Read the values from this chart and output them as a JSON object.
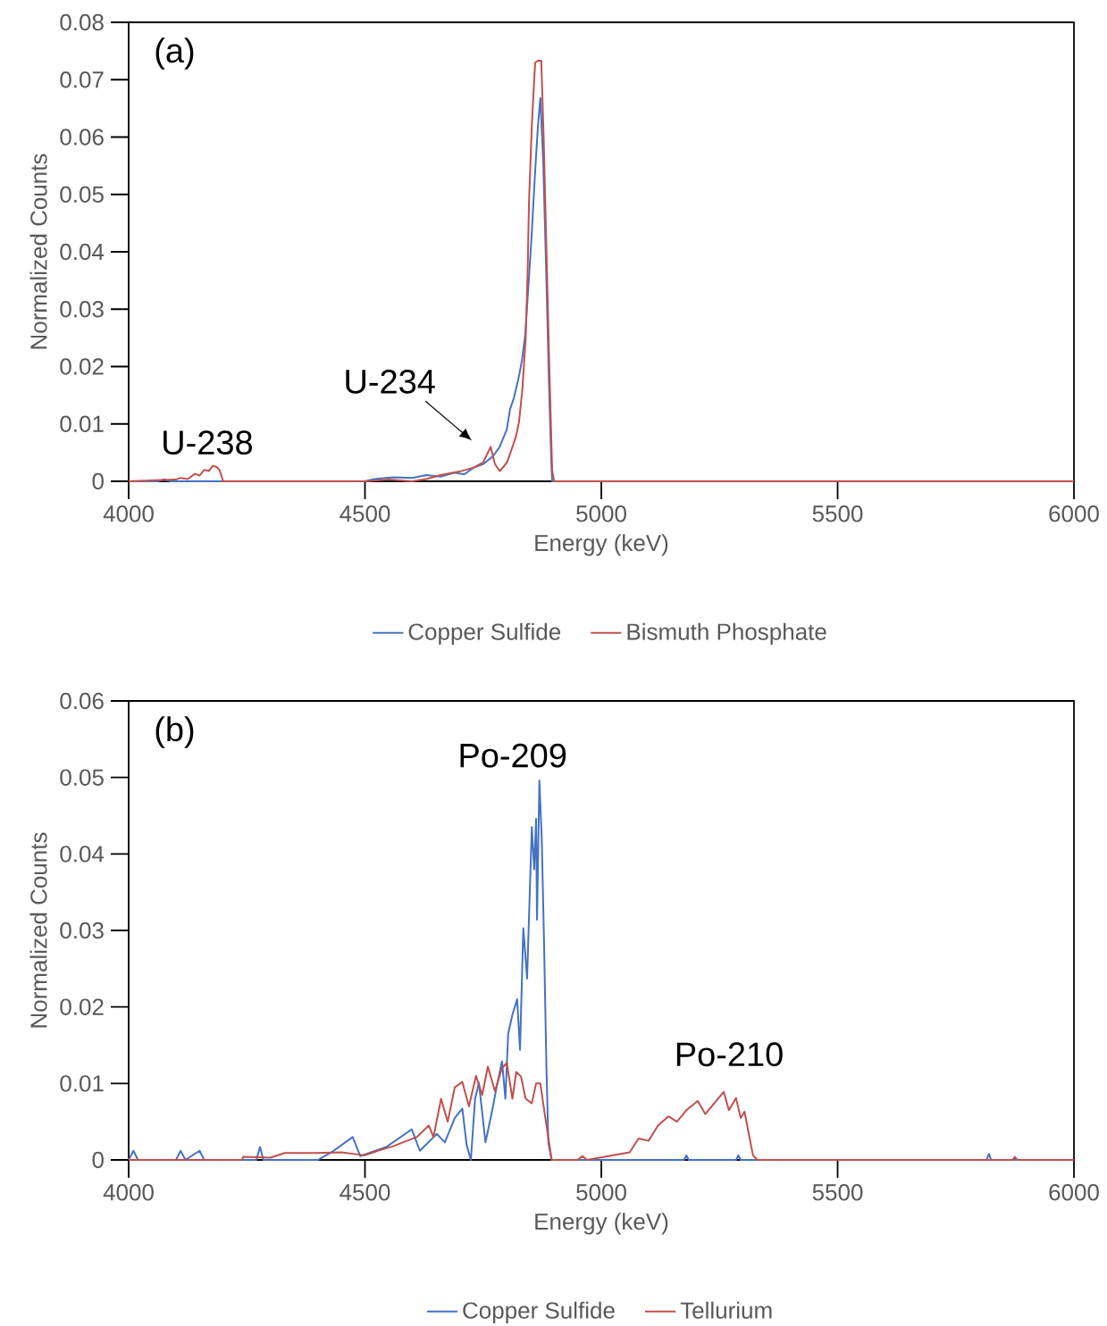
{
  "chart_data": [
    {
      "type": "line",
      "title": "(a)",
      "xlabel": "Energy (keV)",
      "ylabel": "Normalized Counts",
      "legend": "bottom",
      "xlim": [
        4000,
        6000
      ],
      "xticks": [
        4000,
        4500,
        5000,
        5500,
        6000
      ],
      "ylim": [
        0,
        0.08
      ],
      "yticks": [
        0,
        0.01,
        0.02,
        0.03,
        0.04,
        0.05,
        0.06,
        0.07,
        0.08
      ],
      "annotations": [
        {
          "text": "U-238",
          "x": 4170,
          "y": 0.0027
        },
        "U-234"
      ],
      "series": [
        {
          "name": "Copper Sulfide",
          "color": "#4472c4",
          "x": [
            4000,
            4060,
            4075,
            4090,
            4300,
            4500,
            4520,
            4560,
            4600,
            4630,
            4660,
            4690,
            4710,
            4730,
            4750,
            4770,
            4785,
            4800,
            4807,
            4815,
            4825,
            4832,
            4839,
            4845,
            4852,
            4860,
            4866,
            4871,
            4877,
            4883,
            4889,
            4894,
            4896,
            5000,
            6000
          ],
          "values": [
            0,
            0,
            0.0003,
            0,
            0,
            0,
            0.0004,
            0.0007,
            0.0006,
            0.0011,
            0.0008,
            0.0015,
            0.0012,
            0.0024,
            0.003,
            0.0043,
            0.006,
            0.009,
            0.0126,
            0.0145,
            0.018,
            0.021,
            0.0255,
            0.033,
            0.042,
            0.054,
            0.062,
            0.0668,
            0.056,
            0.038,
            0.018,
            0.004,
            0,
            0,
            0
          ]
        },
        {
          "name": "Bismuth Phosphate",
          "color": "#c0504d",
          "x": [
            4000,
            4100,
            4110,
            4125,
            4140,
            4150,
            4160,
            4170,
            4178,
            4186,
            4192,
            4200,
            4500,
            4550,
            4600,
            4630,
            4660,
            4700,
            4730,
            4750,
            4766,
            4775,
            4785,
            4793,
            4801,
            4812,
            4820,
            4826,
            4833,
            4840,
            4844,
            4847,
            4853,
            4860,
            4866,
            4873,
            4878,
            4884,
            4890,
            4896,
            4900,
            6000
          ],
          "values": [
            0,
            0.0003,
            0.0006,
            0.0004,
            0.0013,
            0.001,
            0.002,
            0.0018,
            0.0027,
            0.0025,
            0.002,
            0,
            0,
            0.0003,
            0,
            0.0004,
            0.0011,
            0.0017,
            0.0024,
            0.0033,
            0.006,
            0.003,
            0.0018,
            0.0025,
            0.0034,
            0.006,
            0.008,
            0.0104,
            0.016,
            0.0249,
            0.036,
            0.0486,
            0.062,
            0.073,
            0.0733,
            0.0733,
            0.06,
            0.04,
            0.02,
            0.002,
            0,
            0
          ]
        }
      ]
    },
    {
      "type": "line",
      "title": "(b)",
      "xlabel": "Energy (keV)",
      "ylabel": "Normalized Counts",
      "legend": "bottom",
      "xlim": [
        4000,
        6000
      ],
      "xticks": [
        4000,
        4500,
        5000,
        5500,
        6000
      ],
      "ylim": [
        0,
        0.06
      ],
      "yticks": [
        0,
        0.01,
        0.02,
        0.03,
        0.04,
        0.05,
        0.06
      ],
      "annotations": [
        {
          "text": "Po-209",
          "x": 4869,
          "y": 0.0496
        },
        {
          "text": "Po-210",
          "x": 5259,
          "y": 0.0089
        }
      ],
      "series": [
        {
          "name": "Copper Sulfide",
          "color": "#4472c4",
          "x": [
            4000,
            4010,
            4020,
            4100,
            4110,
            4120,
            4150,
            4160,
            4270,
            4278,
            4285,
            4400,
            4429,
            4474,
            4490,
            4545,
            4599,
            4616,
            4652,
            4669,
            4690,
            4706,
            4715,
            4724,
            4733,
            4741,
            4755,
            4768,
            4780,
            4790,
            4797,
            4803,
            4812,
            4822,
            4828,
            4835,
            4843,
            4853,
            4858,
            4862,
            4864,
            4869,
            4874,
            4879,
            4884,
            4888,
            4895,
            5175,
            5180,
            5185,
            5285,
            5290,
            5295,
            5815,
            5820,
            5825,
            6000
          ],
          "values": [
            0,
            0.0012,
            0,
            0,
            0.0012,
            0,
            0.0012,
            0,
            0,
            0.0017,
            0,
            0,
            0.001,
            0.003,
            0.0005,
            0.0017,
            0.004,
            0.0012,
            0.0034,
            0.0023,
            0.0055,
            0.0067,
            0.002,
            0,
            0.008,
            0.0101,
            0.0023,
            0.0061,
            0.01,
            0.0129,
            0.008,
            0.0165,
            0.019,
            0.021,
            0.0144,
            0.0303,
            0.0237,
            0.0435,
            0.038,
            0.0446,
            0.0314,
            0.0496,
            0.042,
            0.028,
            0.012,
            0.0022,
            0,
            0,
            0.0006,
            0,
            0,
            0.0006,
            0,
            0,
            0.0008,
            0,
            0
          ]
        },
        {
          "name": "Tellurium",
          "color": "#c0504d",
          "x": [
            4000,
            4240,
            4242,
            4300,
            4330,
            4393,
            4450,
            4500,
            4527,
            4560,
            4580,
            4610,
            4635,
            4645,
            4661,
            4675,
            4690,
            4706,
            4720,
            4735,
            4748,
            4760,
            4775,
            4790,
            4800,
            4812,
            4820,
            4830,
            4840,
            4853,
            4862,
            4871,
            4878,
            4884,
            4895,
            4950,
            4960,
            4970,
            5060,
            5079,
            5100,
            5120,
            5142,
            5160,
            5180,
            5204,
            5220,
            5240,
            5259,
            5270,
            5285,
            5295,
            5303,
            5321,
            5330,
            5870,
            5875,
            5880,
            6000
          ],
          "values": [
            0,
            0,
            0.0004,
            0.0003,
            0.0009,
            0.0009,
            0.001,
            0.0006,
            0.0012,
            0.0018,
            0.0023,
            0.003,
            0.0045,
            0.003,
            0.008,
            0.005,
            0.0095,
            0.0102,
            0.007,
            0.011,
            0.0085,
            0.0122,
            0.009,
            0.012,
            0.0127,
            0.008,
            0.0115,
            0.0109,
            0.008,
            0.0074,
            0.01,
            0.01,
            0.007,
            0.0045,
            0,
            0,
            0.0005,
            0,
            0.001,
            0.0028,
            0.0025,
            0.0045,
            0.0057,
            0.005,
            0.0065,
            0.0077,
            0.006,
            0.0075,
            0.0089,
            0.0065,
            0.0081,
            0.0055,
            0.0063,
            0.0006,
            0,
            0,
            0.0004,
            0,
            0
          ]
        }
      ]
    }
  ]
}
